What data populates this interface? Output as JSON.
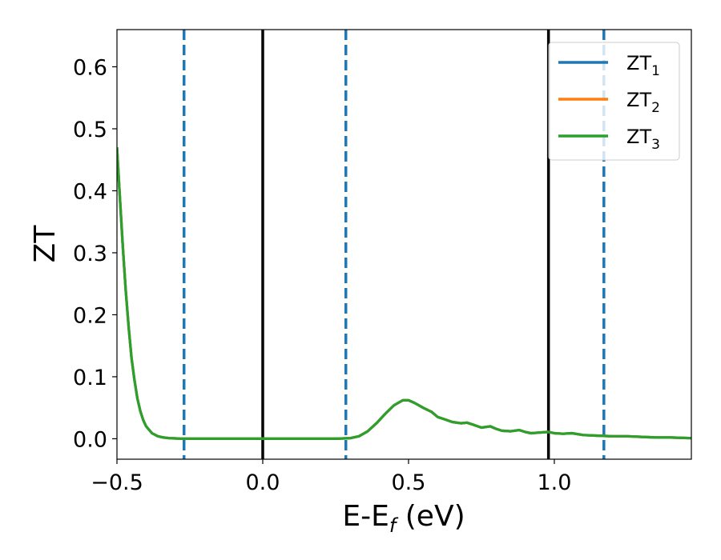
{
  "chart_data": {
    "type": "line",
    "xlabel": "E-E",
    "xlabel_sub": "f",
    "xlabel_unit": " (eV)",
    "ylabel": "ZT",
    "xlim": [
      -0.5,
      1.47
    ],
    "ylim": [
      -0.033,
      0.66
    ],
    "x_ticks": [
      -0.5,
      0.0,
      0.5,
      1.0
    ],
    "x_tick_labels": [
      "−0.5",
      "0.0",
      "0.5",
      "1.0"
    ],
    "y_ticks": [
      0.0,
      0.1,
      0.2,
      0.3,
      0.4,
      0.5,
      0.6
    ],
    "y_tick_labels": [
      "0.0",
      "0.1",
      "0.2",
      "0.3",
      "0.4",
      "0.5",
      "0.6"
    ],
    "legend": {
      "placement": "top-right",
      "entries": [
        {
          "base": "ZT",
          "sub": "1",
          "color": "#1f77b4"
        },
        {
          "base": "ZT",
          "sub": "2",
          "color": "#ff7f0e"
        },
        {
          "base": "ZT",
          "sub": "3",
          "color": "#2ca02c"
        }
      ]
    },
    "vlines_solid": [
      0.0,
      0.98
    ],
    "vlines_dashed": [
      -0.27,
      0.285,
      1.17
    ],
    "series": [
      {
        "name": "ZT1",
        "color": "#1f77b4",
        "x": [
          -0.5,
          -0.49,
          -0.48,
          -0.47,
          -0.46,
          -0.45,
          -0.44,
          -0.43,
          -0.42,
          -0.41,
          -0.4,
          -0.38,
          -0.36,
          -0.34,
          -0.32,
          -0.3,
          -0.28,
          -0.25,
          -0.2,
          -0.1,
          0.0,
          0.1,
          0.2,
          0.25,
          0.3,
          0.33,
          0.36,
          0.39,
          0.42,
          0.45,
          0.48,
          0.5,
          0.52,
          0.55,
          0.58,
          0.6,
          0.62,
          0.65,
          0.68,
          0.7,
          0.72,
          0.75,
          0.78,
          0.8,
          0.82,
          0.85,
          0.88,
          0.9,
          0.92,
          0.95,
          0.98,
          1.0,
          1.03,
          1.06,
          1.1,
          1.15,
          1.2,
          1.25,
          1.3,
          1.35,
          1.4,
          1.47
        ],
        "y": [
          0.47,
          0.39,
          0.31,
          0.24,
          0.18,
          0.13,
          0.095,
          0.065,
          0.045,
          0.03,
          0.02,
          0.009,
          0.004,
          0.002,
          0.001,
          0.0005,
          0.0002,
          0.0,
          0.0,
          0.0,
          0.0,
          0.0,
          0.0,
          0.0,
          0.001,
          0.004,
          0.012,
          0.025,
          0.04,
          0.054,
          0.062,
          0.062,
          0.058,
          0.05,
          0.043,
          0.035,
          0.032,
          0.027,
          0.025,
          0.026,
          0.023,
          0.018,
          0.02,
          0.016,
          0.013,
          0.012,
          0.014,
          0.011,
          0.009,
          0.01,
          0.011,
          0.009,
          0.008,
          0.009,
          0.006,
          0.005,
          0.004,
          0.004,
          0.003,
          0.002,
          0.002,
          0.001
        ]
      },
      {
        "name": "ZT2",
        "color": "#ff7f0e",
        "x": [
          -0.5,
          -0.49,
          -0.48,
          -0.47,
          -0.46,
          -0.45,
          -0.44,
          -0.43,
          -0.42,
          -0.41,
          -0.4,
          -0.38,
          -0.36,
          -0.34,
          -0.32,
          -0.3,
          -0.28,
          -0.25,
          -0.2,
          -0.1,
          0.0,
          0.1,
          0.2,
          0.25,
          0.3,
          0.33,
          0.36,
          0.39,
          0.42,
          0.45,
          0.48,
          0.5,
          0.52,
          0.55,
          0.58,
          0.6,
          0.62,
          0.65,
          0.68,
          0.7,
          0.72,
          0.75,
          0.78,
          0.8,
          0.82,
          0.85,
          0.88,
          0.9,
          0.92,
          0.95,
          0.98,
          1.0,
          1.03,
          1.06,
          1.1,
          1.15,
          1.2,
          1.25,
          1.3,
          1.35,
          1.4,
          1.47
        ],
        "y": [
          0.47,
          0.39,
          0.31,
          0.24,
          0.18,
          0.13,
          0.095,
          0.065,
          0.045,
          0.03,
          0.02,
          0.009,
          0.004,
          0.002,
          0.001,
          0.0005,
          0.0002,
          0.0,
          0.0,
          0.0,
          0.0,
          0.0,
          0.0,
          0.0,
          0.001,
          0.004,
          0.012,
          0.025,
          0.04,
          0.054,
          0.062,
          0.062,
          0.058,
          0.05,
          0.043,
          0.035,
          0.032,
          0.027,
          0.025,
          0.026,
          0.023,
          0.018,
          0.02,
          0.016,
          0.013,
          0.012,
          0.014,
          0.011,
          0.009,
          0.01,
          0.011,
          0.009,
          0.008,
          0.009,
          0.006,
          0.005,
          0.004,
          0.004,
          0.003,
          0.002,
          0.002,
          0.001
        ]
      },
      {
        "name": "ZT3",
        "color": "#2ca02c",
        "x": [
          -0.5,
          -0.49,
          -0.48,
          -0.47,
          -0.46,
          -0.45,
          -0.44,
          -0.43,
          -0.42,
          -0.41,
          -0.4,
          -0.38,
          -0.36,
          -0.34,
          -0.32,
          -0.3,
          -0.28,
          -0.25,
          -0.2,
          -0.1,
          0.0,
          0.1,
          0.2,
          0.25,
          0.3,
          0.33,
          0.36,
          0.39,
          0.42,
          0.45,
          0.48,
          0.5,
          0.52,
          0.55,
          0.58,
          0.6,
          0.62,
          0.65,
          0.68,
          0.7,
          0.72,
          0.75,
          0.78,
          0.8,
          0.82,
          0.85,
          0.88,
          0.9,
          0.92,
          0.95,
          0.98,
          1.0,
          1.03,
          1.06,
          1.1,
          1.15,
          1.2,
          1.25,
          1.3,
          1.35,
          1.4,
          1.47
        ],
        "y": [
          0.47,
          0.39,
          0.31,
          0.24,
          0.18,
          0.13,
          0.095,
          0.065,
          0.045,
          0.03,
          0.02,
          0.009,
          0.004,
          0.002,
          0.001,
          0.0005,
          0.0002,
          0.0,
          0.0,
          0.0,
          0.0,
          0.0,
          0.0,
          0.0,
          0.001,
          0.004,
          0.012,
          0.025,
          0.04,
          0.054,
          0.062,
          0.062,
          0.058,
          0.05,
          0.043,
          0.035,
          0.032,
          0.027,
          0.025,
          0.026,
          0.023,
          0.018,
          0.02,
          0.016,
          0.013,
          0.012,
          0.014,
          0.011,
          0.009,
          0.01,
          0.011,
          0.009,
          0.008,
          0.009,
          0.006,
          0.005,
          0.004,
          0.004,
          0.003,
          0.002,
          0.002,
          0.001
        ]
      }
    ]
  }
}
